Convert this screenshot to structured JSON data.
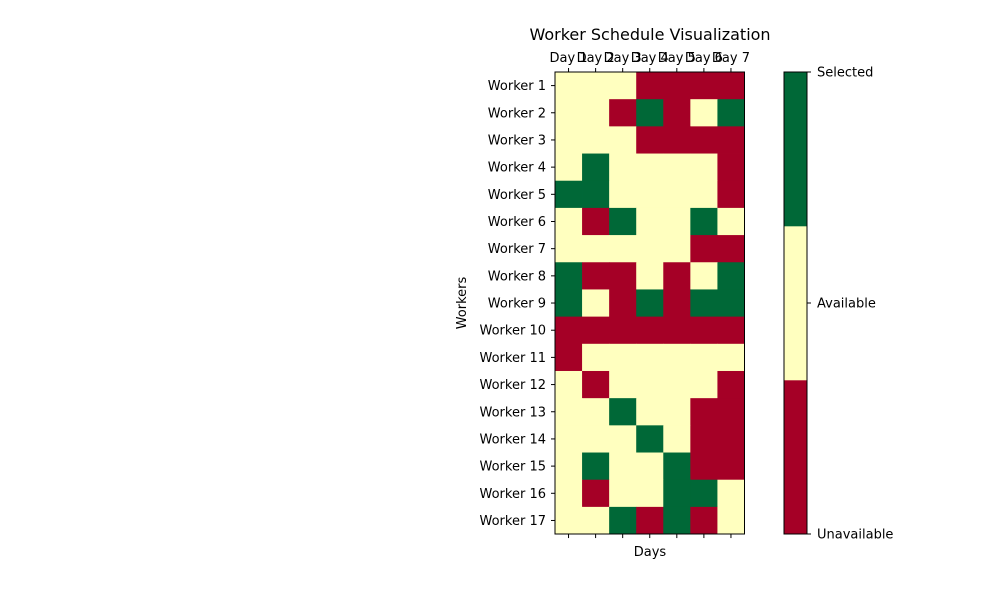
{
  "chart_data": {
    "type": "heatmap",
    "title": "Worker Schedule Visualization",
    "xlabel": "Days",
    "ylabel": "Workers",
    "x_tick_labels": [
      "Day 1",
      "Day 2",
      "Day 3",
      "Day 4",
      "Day 5",
      "Day 6",
      "Day 7"
    ],
    "y_tick_labels": [
      "Worker 1",
      "Worker 2",
      "Worker 3",
      "Worker 4",
      "Worker 5",
      "Worker 6",
      "Worker 7",
      "Worker 8",
      "Worker 9",
      "Worker 10",
      "Worker 11",
      "Worker 12",
      "Worker 13",
      "Worker 14",
      "Worker 15",
      "Worker 16",
      "Worker 17"
    ],
    "values": [
      [
        0,
        0,
        0,
        -1,
        -1,
        -1,
        -1
      ],
      [
        0,
        0,
        -1,
        1,
        -1,
        0,
        1
      ],
      [
        0,
        0,
        0,
        -1,
        -1,
        -1,
        -1
      ],
      [
        0,
        1,
        0,
        0,
        0,
        0,
        -1
      ],
      [
        1,
        1,
        0,
        0,
        0,
        0,
        -1
      ],
      [
        0,
        -1,
        1,
        0,
        0,
        1,
        0
      ],
      [
        0,
        0,
        0,
        0,
        0,
        -1,
        -1
      ],
      [
        1,
        -1,
        -1,
        0,
        -1,
        0,
        1
      ],
      [
        1,
        0,
        -1,
        1,
        -1,
        1,
        1
      ],
      [
        -1,
        -1,
        -1,
        -1,
        -1,
        -1,
        -1
      ],
      [
        -1,
        0,
        0,
        0,
        0,
        0,
        0
      ],
      [
        0,
        -1,
        0,
        0,
        0,
        0,
        -1
      ],
      [
        0,
        0,
        1,
        0,
        0,
        -1,
        -1
      ],
      [
        0,
        0,
        0,
        1,
        0,
        -1,
        -1
      ],
      [
        0,
        1,
        0,
        0,
        1,
        -1,
        -1
      ],
      [
        0,
        -1,
        0,
        0,
        1,
        1,
        0
      ],
      [
        0,
        0,
        1,
        -1,
        1,
        -1,
        0
      ]
    ],
    "value_range": [
      -1,
      1
    ],
    "legend": {
      "position": "right",
      "levels": [
        {
          "value": -1,
          "label": "Unavailable",
          "color": "#a50026"
        },
        {
          "value": 0,
          "label": "Available",
          "color": "#ffffbf"
        },
        {
          "value": 1,
          "label": "Selected",
          "color": "#006837"
        }
      ]
    },
    "grid": false
  }
}
